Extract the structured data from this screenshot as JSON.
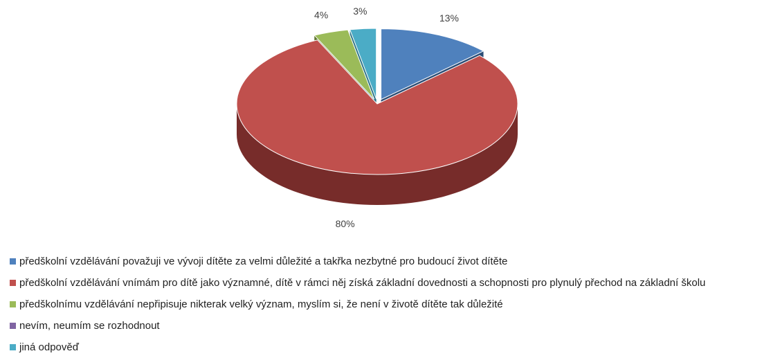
{
  "chart_data": {
    "type": "pie",
    "slices": [
      {
        "label": "předškolní vzdělávání považuji ve vývoji dítěte za velmi důležité a takřka nezbytné pro budoucí život dítěte",
        "value": 13,
        "value_label": "13%",
        "color": "#4f81bd",
        "side_color": "#2c4d75"
      },
      {
        "label": "předškolní vzdělávání vnímám pro dítě jako významné, dítě v rámci něj získá základní dovednosti a schopnosti pro plynulý přechod na základní školu",
        "value": 80,
        "value_label": "80%",
        "color": "#c0504d",
        "side_color": "#772c2a"
      },
      {
        "label": "předškolnímu vzdělávání nepřipisuje nikterak velký význam, myslím si, že není v životě dítěte tak důležité",
        "value": 4,
        "value_label": "4%",
        "color": "#9bbb59",
        "side_color": "#5f7530"
      },
      {
        "label": "nevím, neumím se rozhodnout",
        "value": 0,
        "value_label": "",
        "color": "#8064a2",
        "side_color": "#4d3b62"
      },
      {
        "label": "jiná odpověď",
        "value": 3,
        "value_label": "3%",
        "color": "#4bacc6",
        "side_color": "#2c7488"
      }
    ],
    "legend_position": "bottom"
  }
}
